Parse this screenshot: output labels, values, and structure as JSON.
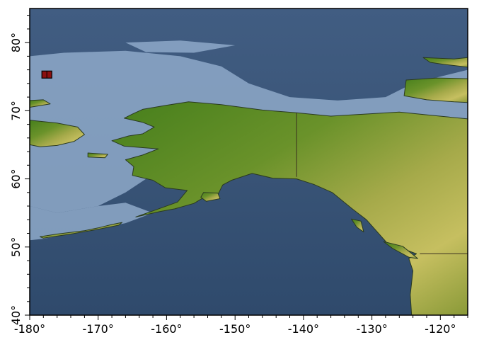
{
  "map": {
    "projection": "equirectangular",
    "lon_range": [
      -180,
      -116
    ],
    "lat_range": [
      40,
      85
    ],
    "x_ticks": [
      {
        "value": -180,
        "label": "-180°"
      },
      {
        "value": -170,
        "label": "-170°"
      },
      {
        "value": -160,
        "label": "-160°"
      },
      {
        "value": -150,
        "label": "-150°"
      },
      {
        "value": -140,
        "label": "-140°"
      },
      {
        "value": -130,
        "label": "-130°"
      },
      {
        "value": -120,
        "label": "-120°"
      }
    ],
    "y_ticks": [
      {
        "value": 40,
        "label": "40°"
      },
      {
        "value": 50,
        "label": "50°"
      },
      {
        "value": 60,
        "label": "60°"
      },
      {
        "value": 70,
        "label": "70°"
      },
      {
        "value": 80,
        "label": "80°"
      }
    ],
    "marker": {
      "lon": -177.5,
      "lat": 75.3,
      "color": "#8b1010"
    },
    "colors": {
      "deep_ocean": "#3a5578",
      "shallow_shelf": "#8fa8c8",
      "land_low": "#3f7a1a",
      "land_high": "#c8c060",
      "coast": "#2a3a20",
      "border": "#3a3020",
      "frame": "#000000"
    },
    "features": [
      {
        "name": "chukotka",
        "kind": "land",
        "pts": [
          [
            -180,
            71.5
          ],
          [
            -178,
            71.6
          ],
          [
            -177,
            71
          ],
          [
            -180,
            70.5
          ]
        ]
      },
      {
        "name": "chukotka-south",
        "kind": "land",
        "pts": [
          [
            -180,
            68.6
          ],
          [
            -176,
            68.2
          ],
          [
            -173,
            67.6
          ],
          [
            -172,
            66.5
          ],
          [
            -173.5,
            65.5
          ],
          [
            -176,
            64.9
          ],
          [
            -178.5,
            64.7
          ],
          [
            -180,
            65
          ]
        ]
      },
      {
        "name": "st-lawrence-island",
        "kind": "land",
        "pts": [
          [
            -171.5,
            63.8
          ],
          [
            -168.6,
            63.6
          ],
          [
            -169,
            63.1
          ],
          [
            -171.5,
            63.2
          ]
        ]
      },
      {
        "name": "alaska-canada",
        "kind": "land",
        "pts": [
          [
            -163.5,
            70.2
          ],
          [
            -160,
            70.8
          ],
          [
            -156.8,
            71.3
          ],
          [
            -152,
            70.9
          ],
          [
            -146,
            70.1
          ],
          [
            -141,
            69.7
          ],
          [
            -136,
            69.2
          ],
          [
            -131,
            69.5
          ],
          [
            -126,
            69.8
          ],
          [
            -121,
            69.3
          ],
          [
            -116,
            68.8
          ],
          [
            -116,
            40
          ],
          [
            -124.2,
            40
          ],
          [
            -124.4,
            43
          ],
          [
            -124,
            46.5
          ],
          [
            -124.6,
            48.3
          ],
          [
            -123.5,
            49
          ],
          [
            -127.8,
            50.6
          ],
          [
            -130.8,
            54
          ],
          [
            -133,
            55.7
          ],
          [
            -135.8,
            58
          ],
          [
            -138.5,
            59.2
          ],
          [
            -141,
            60
          ],
          [
            -144.5,
            60.1
          ],
          [
            -147.5,
            60.8
          ],
          [
            -150.5,
            59.8
          ],
          [
            -151.8,
            59.1
          ],
          [
            -152.5,
            57.7
          ],
          [
            -154.5,
            57.3
          ],
          [
            -156,
            56.4
          ],
          [
            -158.8,
            55.6
          ],
          [
            -161,
            55.2
          ],
          [
            -164.5,
            54.4
          ],
          [
            -162,
            55.3
          ],
          [
            -158.4,
            56.6
          ],
          [
            -157,
            58.3
          ],
          [
            -160.2,
            58.7
          ],
          [
            -162,
            59.8
          ],
          [
            -165,
            60.5
          ],
          [
            -164.8,
            61.8
          ],
          [
            -166,
            62.8
          ],
          [
            -163.5,
            63.5
          ],
          [
            -161.2,
            64.4
          ],
          [
            -163.8,
            64.6
          ],
          [
            -166.2,
            64.8
          ],
          [
            -168,
            65.6
          ],
          [
            -165.5,
            66.3
          ],
          [
            -163.5,
            66.6
          ],
          [
            -161.8,
            67.6
          ],
          [
            -163.5,
            68.3
          ],
          [
            -166.2,
            68.9
          ],
          [
            -165,
            69.5
          ]
        ]
      },
      {
        "name": "kodiak-island",
        "kind": "land",
        "pts": [
          [
            -154.6,
            58.0
          ],
          [
            -152.5,
            57.9
          ],
          [
            -152.2,
            57.1
          ],
          [
            -154.2,
            56.7
          ],
          [
            -155,
            57.3
          ]
        ]
      },
      {
        "name": "aleutian-1",
        "kind": "land",
        "pts": [
          [
            -178.5,
            51.5
          ],
          [
            -176,
            51.9
          ],
          [
            -172,
            52.4
          ],
          [
            -170,
            52.8
          ],
          [
            -168,
            53.3
          ],
          [
            -166.5,
            53.6
          ],
          [
            -167,
            53.2
          ],
          [
            -170,
            52.6
          ],
          [
            -174,
            51.9
          ],
          [
            -178,
            51.3
          ]
        ]
      },
      {
        "name": "vancouver-island",
        "kind": "land",
        "pts": [
          [
            -128.3,
            50.8
          ],
          [
            -125.5,
            50.1
          ],
          [
            -123.3,
            48.3
          ],
          [
            -124.6,
            48.5
          ],
          [
            -127,
            49.8
          ]
        ]
      },
      {
        "name": "haida-gwaii",
        "kind": "land",
        "pts": [
          [
            -133,
            54.1
          ],
          [
            -131.6,
            53.8
          ],
          [
            -131.2,
            52.2
          ],
          [
            -132.2,
            52.9
          ]
        ]
      },
      {
        "name": "banks-island",
        "kind": "land",
        "pts": [
          [
            -125,
            74.5
          ],
          [
            -120.5,
            74.8
          ],
          [
            -116,
            74.7
          ],
          [
            -116,
            71.2
          ],
          [
            -118,
            71.3
          ],
          [
            -122,
            71.6
          ],
          [
            -125.3,
            72.2
          ]
        ]
      },
      {
        "name": "prince-patrick-island",
        "kind": "land",
        "pts": [
          [
            -122.5,
            77.8
          ],
          [
            -118,
            77.6
          ],
          [
            -116,
            77.8
          ],
          [
            -116,
            76.4
          ],
          [
            -119.5,
            76.8
          ],
          [
            -121.5,
            77.1
          ]
        ]
      }
    ],
    "borders": [
      {
        "name": "alaska-canada-border",
        "pts": [
          [
            -141,
            69.7
          ],
          [
            -141,
            60.3
          ]
        ]
      },
      {
        "name": "us-canada-border",
        "pts": [
          [
            -123,
            49
          ],
          [
            -116,
            49
          ]
        ]
      }
    ]
  }
}
